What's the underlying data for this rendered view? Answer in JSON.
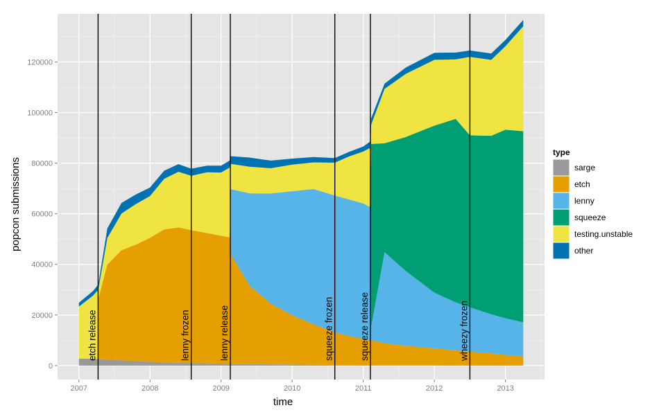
{
  "chart_data": {
    "type": "area",
    "stacked": true,
    "xlabel": "time",
    "ylabel": "popcon submissions",
    "xlim": [
      2006.7,
      2013.55
    ],
    "ylim": [
      -5500,
      139000
    ],
    "x_ticks": [
      2007,
      2008,
      2009,
      2010,
      2011,
      2012,
      2013
    ],
    "y_ticks": [
      0,
      20000,
      40000,
      60000,
      80000,
      100000,
      120000
    ],
    "grid": true,
    "legend": {
      "title": "type",
      "position": "right"
    },
    "colors": {
      "sarge": "#999999",
      "etch": "#E69F00",
      "lenny": "#56B4E9",
      "squeeze": "#009E73",
      "testing.unstable": "#F0E442",
      "other": "#0072B2",
      "panel": "#E5E5E5",
      "grid_major": "#FFFFFF",
      "grid_minor": "#F2F2F2"
    },
    "x": [
      2007.0,
      2007.2,
      2007.26,
      2007.27,
      2007.4,
      2007.6,
      2007.8,
      2008.0,
      2008.2,
      2008.4,
      2008.58,
      2008.8,
      2009.0,
      2009.12,
      2009.13,
      2009.4,
      2009.7,
      2010.0,
      2010.3,
      2010.6,
      2010.8,
      2011.0,
      2011.1,
      2011.11,
      2011.3,
      2011.6,
      2012.0,
      2012.3,
      2012.5,
      2012.8,
      2013.0,
      2013.25
    ],
    "series": [
      {
        "name": "sarge",
        "values": [
          2800,
          2700,
          2600,
          2600,
          2400,
          2100,
          1800,
          1500,
          1300,
          1100,
          1000,
          900,
          800,
          750,
          750,
          600,
          500,
          400,
          300,
          200,
          150,
          100,
          80,
          80,
          50,
          30,
          20,
          10,
          10,
          5,
          5,
          5
        ]
      },
      {
        "name": "etch",
        "values": [
          0,
          0,
          0,
          23500,
          37500,
          43500,
          46000,
          49000,
          52500,
          53500,
          52500,
          51500,
          50500,
          50000,
          43500,
          31000,
          24000,
          19500,
          16000,
          13000,
          11500,
          10500,
          10000,
          10000,
          8800,
          7800,
          6800,
          6000,
          5500,
          4800,
          4200,
          3600
        ]
      },
      {
        "name": "lenny",
        "values": [
          0,
          0,
          0,
          0,
          0,
          0,
          0,
          0,
          0,
          0,
          0,
          0,
          0,
          0,
          25500,
          36500,
          43500,
          49000,
          53500,
          54000,
          54000,
          53500,
          52500,
          5000,
          36000,
          29500,
          22000,
          19000,
          17500,
          15500,
          14500,
          13500
        ]
      },
      {
        "name": "squeeze",
        "values": [
          0,
          0,
          0,
          0,
          0,
          0,
          0,
          0,
          0,
          0,
          0,
          0,
          0,
          0,
          0,
          0,
          0,
          0,
          0,
          0,
          0,
          0,
          0,
          72500,
          43000,
          53000,
          66000,
          72500,
          68000,
          70500,
          74500,
          75500
        ]
      },
      {
        "name": "testing.unstable",
        "values": [
          20500,
          25000,
          27000,
          3500,
          10500,
          14500,
          16000,
          16500,
          20000,
          22000,
          21500,
          24000,
          25000,
          27500,
          10000,
          10500,
          10000,
          10500,
          10500,
          13000,
          17000,
          20500,
          23500,
          7500,
          21500,
          25000,
          26000,
          23500,
          31000,
          30000,
          33000,
          41500
        ]
      },
      {
        "name": "other",
        "values": [
          1500,
          1800,
          2000,
          2000,
          3800,
          4200,
          3800,
          3400,
          3200,
          3000,
          2800,
          2600,
          2700,
          2750,
          3000,
          3600,
          3000,
          2400,
          2100,
          1800,
          1800,
          2000,
          2500,
          2500,
          2100,
          2500,
          2800,
          2700,
          2500,
          2500,
          2500,
          2500
        ]
      }
    ],
    "annotations": [
      {
        "x": 2007.27,
        "label": "etch release"
      },
      {
        "x": 2008.58,
        "label": "lenny frozen"
      },
      {
        "x": 2009.13,
        "label": "lenny release"
      },
      {
        "x": 2010.6,
        "label": "squeeze frozen"
      },
      {
        "x": 2011.1,
        "label": "squeeze release"
      },
      {
        "x": 2012.5,
        "label": "wheezy frozen"
      }
    ]
  }
}
